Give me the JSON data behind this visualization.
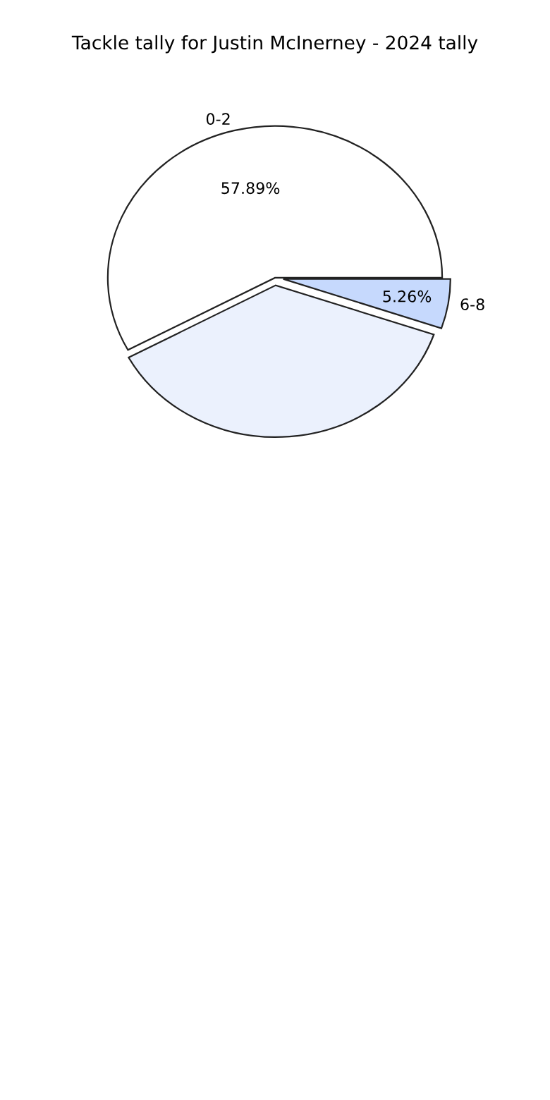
{
  "chart_data": {
    "type": "pie",
    "title": "Tackle tally for Justin McInerney - 2024 tally",
    "categories": [
      "0-2",
      null,
      "6-8"
    ],
    "values": [
      57.89,
      36.85,
      5.26
    ],
    "value_labels": [
      "57.89%",
      null,
      "5.26%"
    ],
    "colors": [
      "#ffffff",
      "#ebf1fd",
      "#c6d9fd"
    ]
  }
}
